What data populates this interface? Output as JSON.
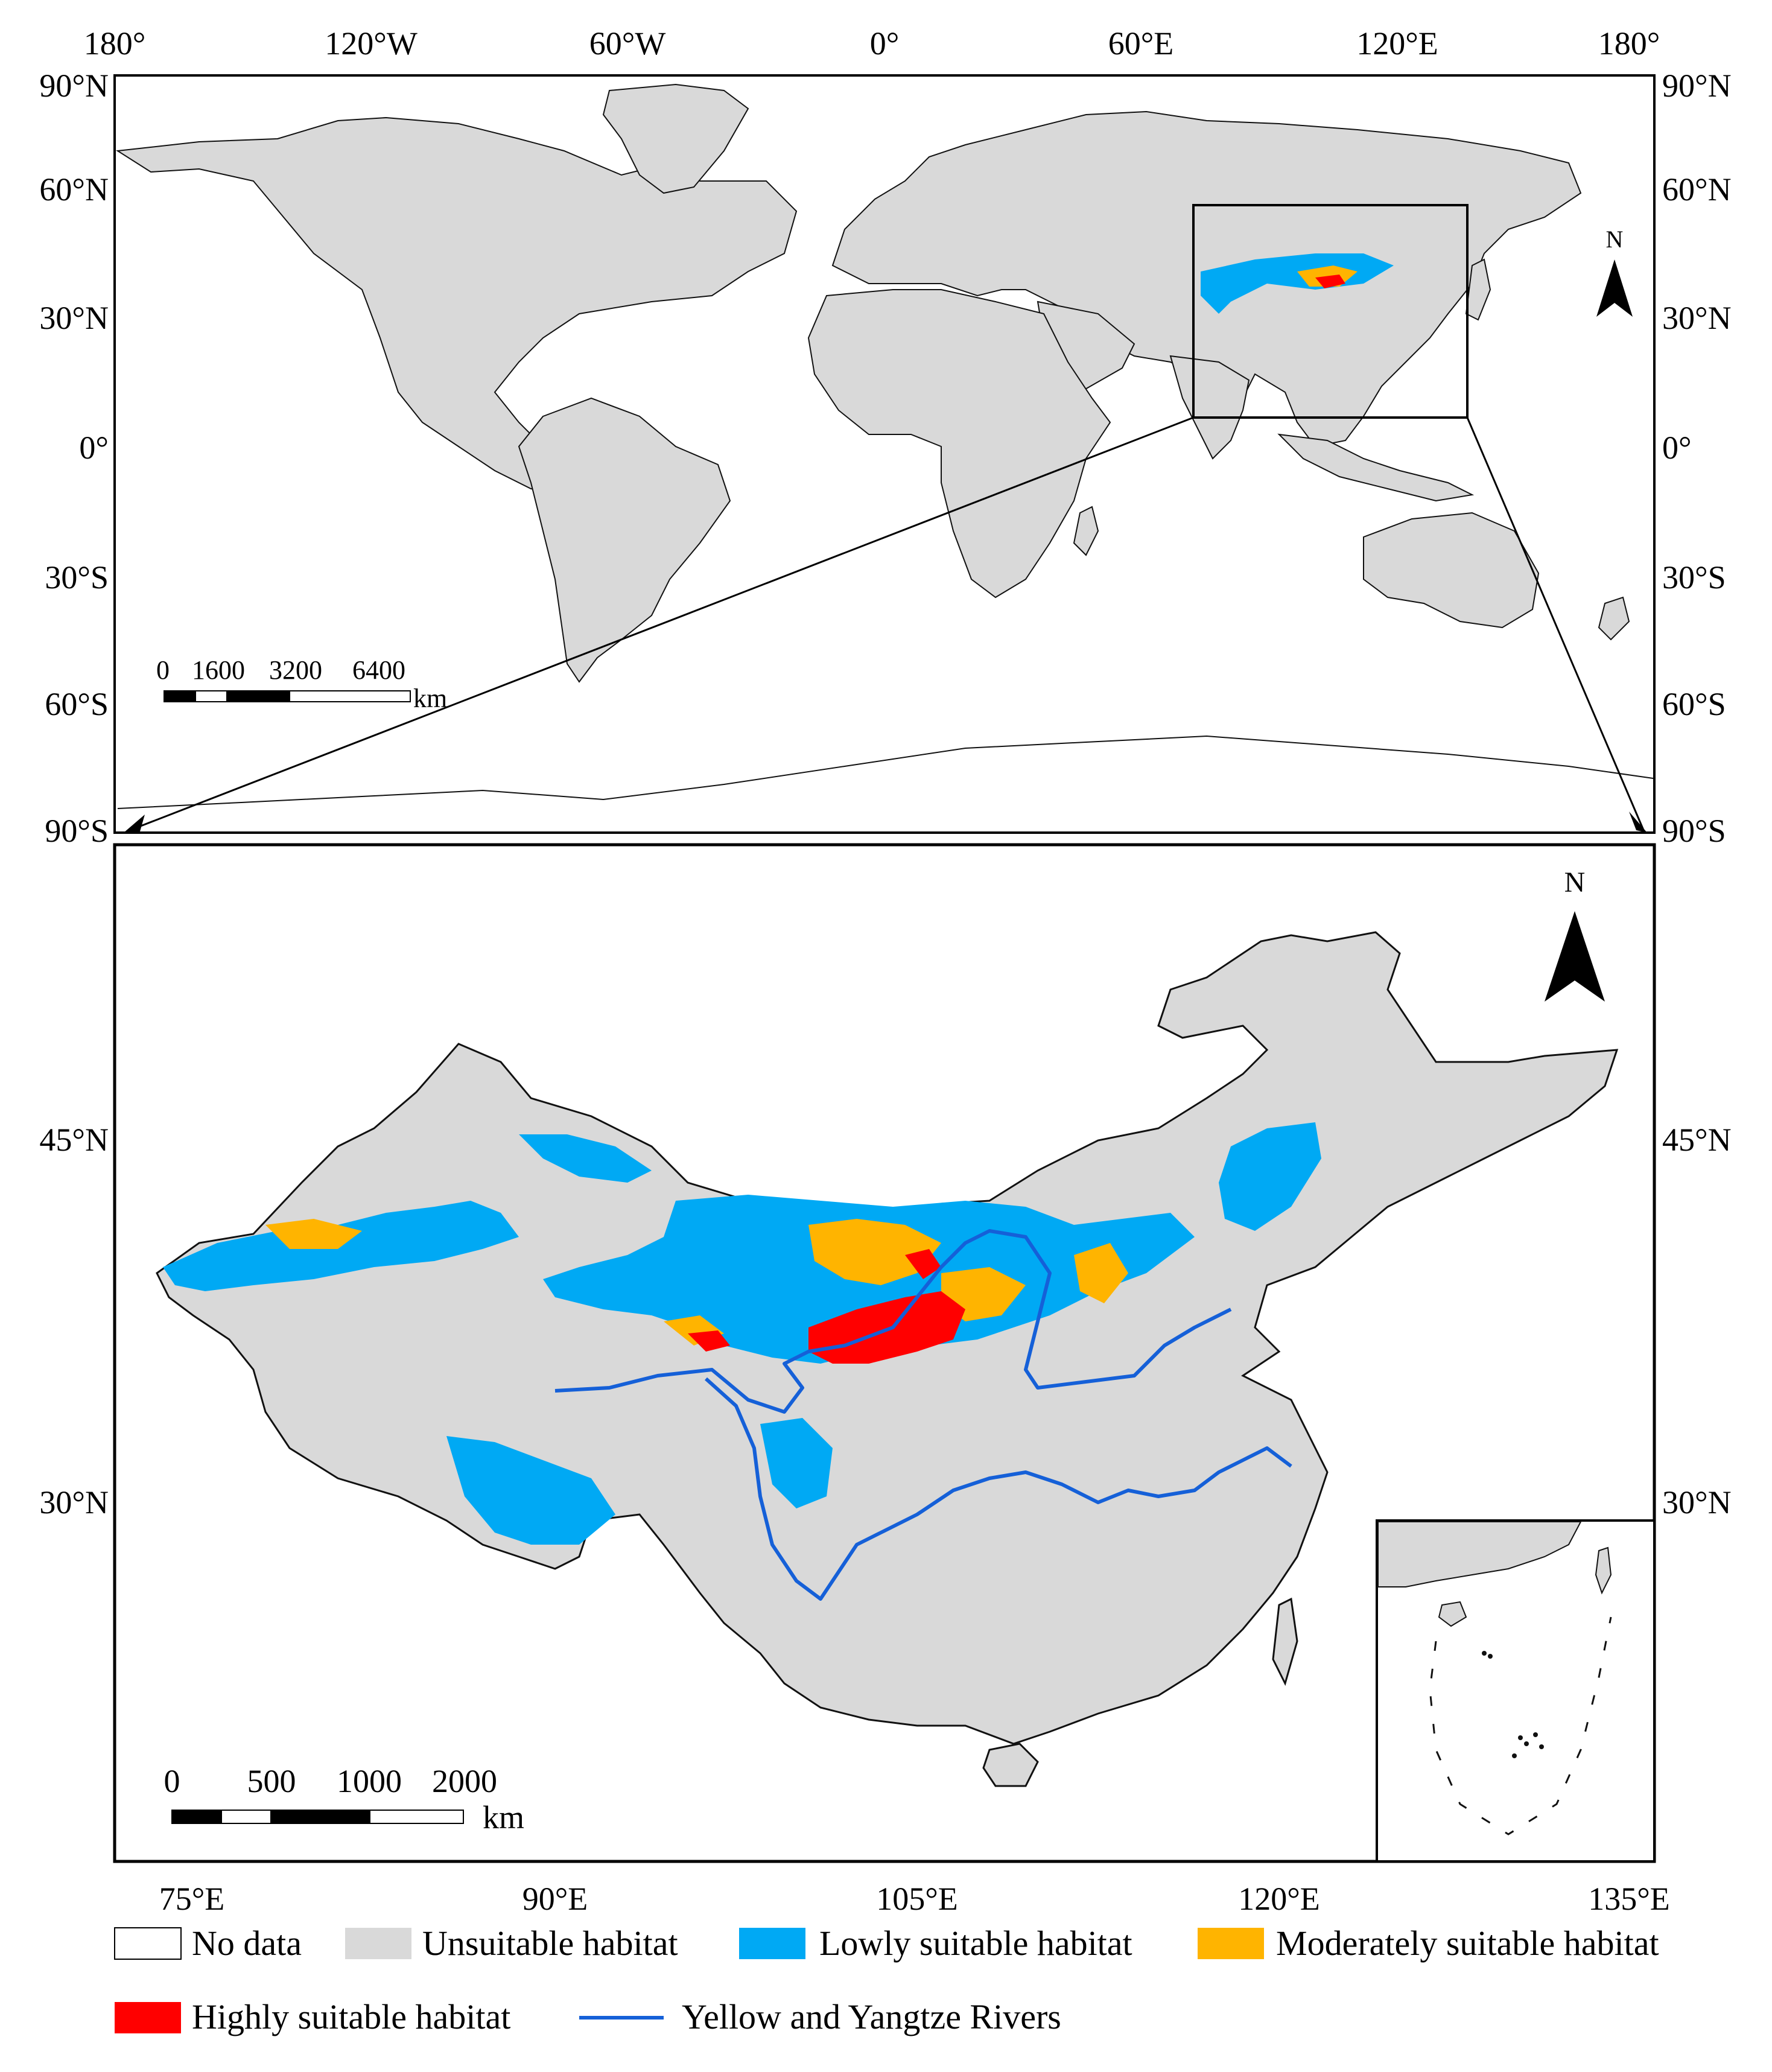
{
  "world_map": {
    "top_axis": [
      "180°",
      "120°W",
      "60°W",
      "0°",
      "60°E",
      "120°E",
      "180°"
    ],
    "left_axis": [
      "90°N",
      "60°N",
      "30°N",
      "0°",
      "30°S",
      "60°S",
      "90°S"
    ],
    "right_axis": [
      "90°N",
      "60°N",
      "30°N",
      "0°",
      "30°S",
      "60°S",
      "90°S"
    ],
    "north_arrow_label": "N",
    "scale_bar": {
      "ticks": [
        "0",
        "1600",
        "3200",
        "6400"
      ],
      "unit": "km"
    }
  },
  "china_map": {
    "bottom_axis": [
      "75°E",
      "90°E",
      "105°E",
      "120°E",
      "135°E"
    ],
    "left_axis": [
      "45°N",
      "30°N"
    ],
    "right_axis": [
      "45°N",
      "30°N"
    ],
    "north_arrow_label": "N",
    "scale_bar": {
      "ticks": [
        "0",
        "500",
        "1000",
        "2000"
      ],
      "unit": "km"
    }
  },
  "legend": {
    "items": [
      {
        "label": "No data",
        "color": "#ffffff",
        "kind": "box"
      },
      {
        "label": "Unsuitable habitat",
        "color": "#d9d9d9",
        "kind": "box"
      },
      {
        "label": "Lowly suitable habitat",
        "color": "#00a9f4",
        "kind": "box"
      },
      {
        "label": "Moderately suitable habitat",
        "color": "#ffb400",
        "kind": "box"
      },
      {
        "label": "Highly suitable habitat",
        "color": "#ff0000",
        "kind": "box"
      },
      {
        "label": "Yellow and Yangtze Rivers",
        "color": "#1560d8",
        "kind": "line"
      }
    ]
  },
  "colors": {
    "unsuitable": "#d9d9d9",
    "low": "#00a9f4",
    "moderate": "#ffb400",
    "high": "#ff0000",
    "river": "#1560d8",
    "border": "#111111"
  }
}
